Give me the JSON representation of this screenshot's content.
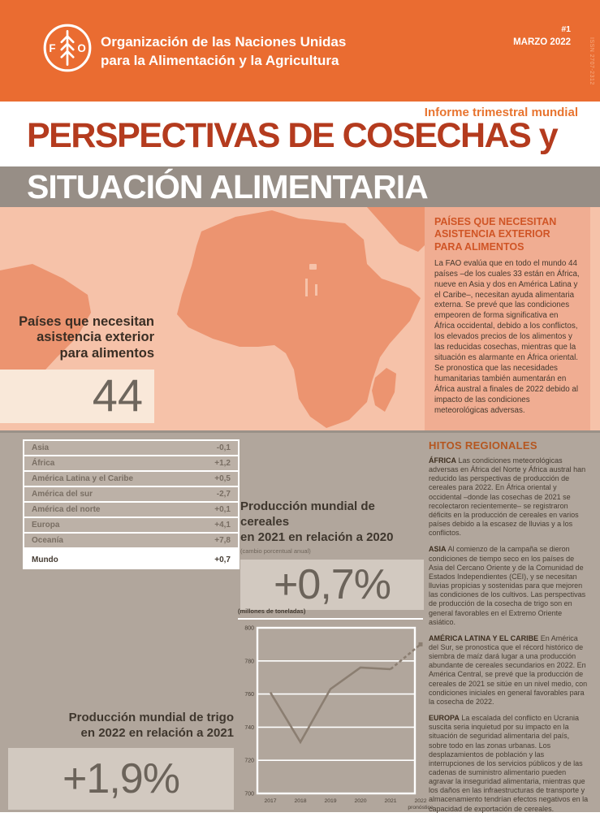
{
  "colors": {
    "header_orange": "#ea6c31",
    "title_red": "#b43b1e",
    "band_gray": "#978e86",
    "map_background": "#f6c2a9",
    "landmass": "#ec9470",
    "panel_orange": "#f0ad92",
    "lower_taupe": "#b1a69c",
    "accent_heading": "#d05526"
  },
  "header": {
    "org_line1": "Organización de las Naciones Unidas",
    "org_line2": "para la Alimentación y la Agricultura",
    "issue": "#1",
    "date": "MARZO 2022",
    "issn": "ISSN 2707-2312"
  },
  "masthead": {
    "kicker": "Informe trimestral mundial",
    "title_line1": "PERSPECTIVAS DE COSECHAS y",
    "title_line2": "SITUACIÓN ALIMENTARIA"
  },
  "map_section": {
    "stat_label": "Países que necesitan asistencia exterior para alimentos",
    "stat_value": "44"
  },
  "assistance_panel": {
    "title": "PAÍSES QUE NECESITAN ASISTENCIA EXTERIOR PARA ALIMENTOS",
    "body": "La FAO evalúa que en todo el mundo 44 países –de los cuales 33 están en África, nueve en Asia y dos en América Latina y el Caribe–, necesitan ayuda alimentaria externa. Se prevé que las condiciones empeoren de forma significativa en África occidental, debido a los conflictos, los elevados precios de los alimentos y las reducidas cosechas, mientras que la situación es alarmante en África oriental. Se pronostica que las necesidades humanitarias también aumentarán en África austral a finales de 2022 debido al impacto de las condiciones meteorológicas adversas."
  },
  "production_table": {
    "rows": [
      {
        "label": "Asia",
        "value": "-0,1"
      },
      {
        "label": "África",
        "value": "+1,2"
      },
      {
        "label": "América Latina y el Caribe",
        "value": "+0,5"
      },
      {
        "label": "América del sur",
        "value": "-2,7"
      },
      {
        "label": "América del norte",
        "value": "+0,1"
      },
      {
        "label": "Europa",
        "value": "+4,1"
      },
      {
        "label": "Oceanía",
        "value": "+7,8"
      }
    ],
    "total_row": {
      "label": "Mundo",
      "value": "+0,7"
    }
  },
  "cereal_stat": {
    "heading_line1": "Producción mundial de cereales",
    "heading_line2": "en 2021 en relación a 2020",
    "subnote": "(cambio porcentual anual)",
    "value": "+0,7%"
  },
  "wheat_stat": {
    "heading_line1": "Producción mundial de trigo",
    "heading_line2": "en 2022 en relación a 2021",
    "value": "+1,9%"
  },
  "chart_data": {
    "type": "line",
    "title": "Producción mundial de trigo",
    "unit_label": "(millones de toneladas)",
    "x": [
      "2017",
      "2018",
      "2019",
      "2020",
      "2021",
      "2022"
    ],
    "x_note": "pronóstico",
    "values": [
      761,
      731,
      763,
      776,
      775,
      790
    ],
    "forecast_from_index": 4,
    "ylim": [
      700,
      800
    ],
    "yticks": [
      700,
      720,
      740,
      760,
      780,
      800
    ],
    "grid": true,
    "legend": "none",
    "line_color": "#8b7e71"
  },
  "hitos": {
    "title": "HITOS REGIONALES",
    "sections": [
      {
        "name": "ÁFRICA",
        "text": "Las condiciones meteorológicas adversas en África del Norte y África austral han reducido las perspectivas de producción de cereales para 2022. En África oriental y occidental –donde las cosechas de 2021 se recolectaron recientemente– se registraron déficits en la producción de cereales en varios países debido a la escasez de lluvias y a los conflictos."
      },
      {
        "name": "ASIA",
        "text": "Al comienzo de la campaña se dieron condiciones de tiempo seco en los países de Asia del Cercano Oriente y de la Comunidad de Estados Independientes (CEI), y se necesitan lluvias propicias y sostenidas para que mejoren las condiciones de los cultivos. Las perspectivas de producción de la cosecha de trigo son en general favorables en el Extremo Oriente asiático."
      },
      {
        "name": "AMÉRICA LATINA Y EL CARIBE",
        "text": "En América del Sur, se pronostica que el récord histórico de siembra de maíz dará lugar a una producción abundante de cereales secundarios en 2022. En América Central, se prevé que la producción de cereales de 2021 se sitúe en un nivel medio, con condiciones iniciales en general favorables para la cosecha de 2022."
      },
      {
        "name": "EUROPA",
        "text": "La escalada del conflicto en Ucrania suscita seria inquietud por su impacto en la situación de seguridad alimentaria del país, sobre todo en las zonas urbanas. Los desplazamientos de población y las interrupciones de los servicios públicos y de las cadenas de suministro alimentario pueden agravar la inseguridad alimentaria, mientras que los daños en las infraestructuras de transporte y almacenamiento tendrían efectos negativos en la capacidad de exportación de cereales."
      }
    ]
  }
}
